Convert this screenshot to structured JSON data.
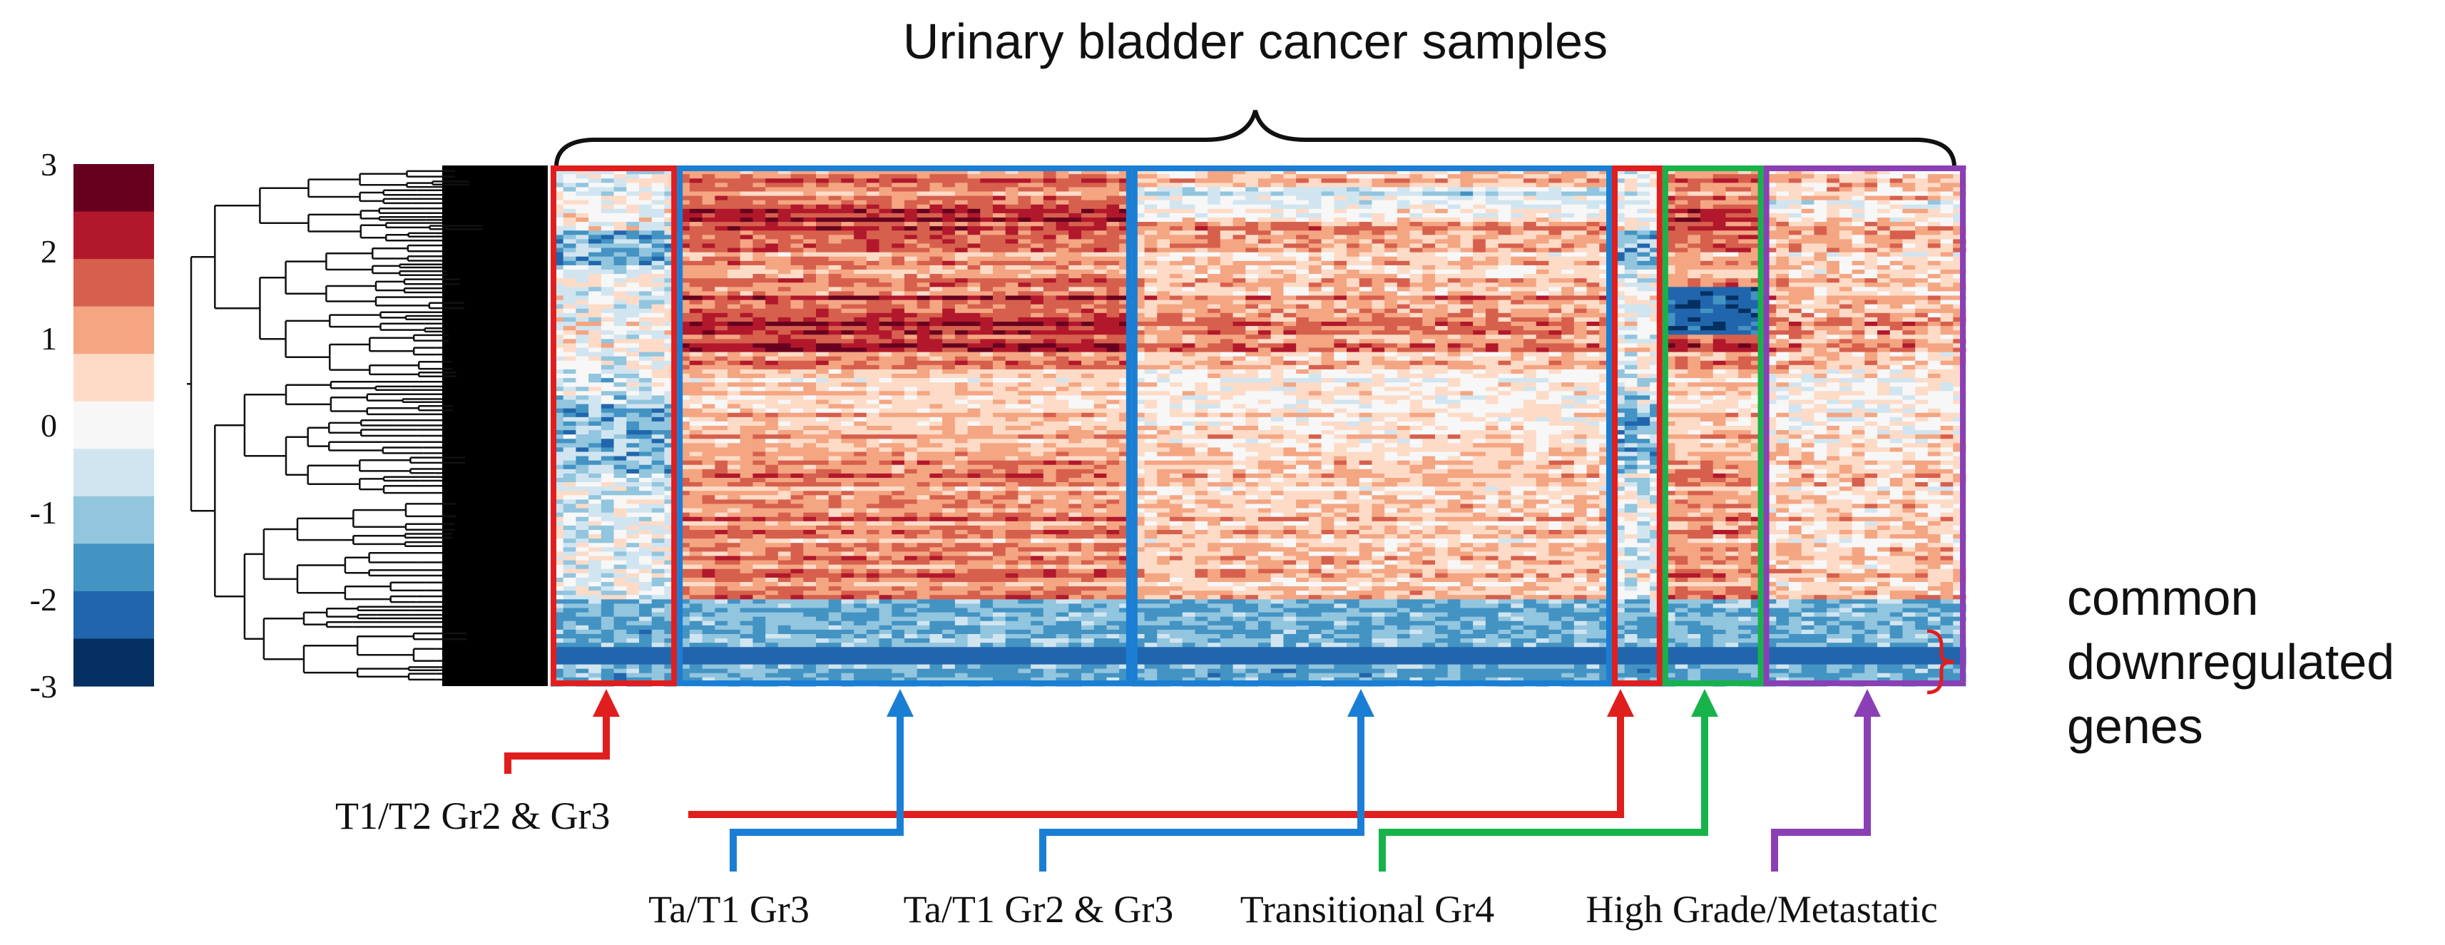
{
  "chart_data": {
    "type": "heatmap",
    "title": "Urinary bladder cancer samples",
    "colorbar": {
      "ticks": [
        "3",
        "2",
        "1",
        "0",
        "-1",
        "-2",
        "-3"
      ],
      "range": [
        -3,
        3
      ],
      "colors": [
        "#67001f",
        "#b2182b",
        "#d6604d",
        "#f4a582",
        "#fddbc7",
        "#f7f7f7",
        "#d1e5f0",
        "#92c5de",
        "#4393c3",
        "#2166ac",
        "#053061"
      ]
    },
    "sample_groups": [
      {
        "name": "T1/T2 Gr2 & Gr3",
        "box_color": "#e01e1e",
        "columns": 10,
        "pattern": "mixed"
      },
      {
        "name": "Ta/T1 Gr3",
        "box_color": "#1a7fd4",
        "columns": 36,
        "pattern": "high"
      },
      {
        "name": "Ta/T1 Gr2 & Gr3",
        "box_color": "#1a7fd4",
        "columns": 38,
        "pattern": "light"
      },
      {
        "name": "T1/T2 Gr2 & Gr3",
        "box_color": "#e01e1e",
        "columns": 4,
        "pattern": "mixed"
      },
      {
        "name": "Transitional Gr4",
        "box_color": "#17b34a",
        "columns": 8,
        "pattern": "transitional"
      },
      {
        "name": "High Grade/Metastatic",
        "box_color": "#8a3fb5",
        "columns": 16,
        "pattern": "metastatic"
      }
    ],
    "bracket_label": [
      "common",
      "downregulated",
      "genes"
    ],
    "row_count": 120
  },
  "labels": {
    "title": "Urinary bladder cancer samples",
    "t1t2": "T1/T2 Gr2 & Gr3",
    "tat1gr3": "Ta/T1 Gr3",
    "tat1gr23": "Ta/T1 Gr2 & Gr3",
    "transitional": "Transitional Gr4",
    "highgrade": "High Grade/Metastatic",
    "common_line1": "common",
    "common_line2": "downregulated",
    "common_line3": "genes"
  },
  "colors": {
    "red": "#e01e1e",
    "blue": "#1a7fd4",
    "green": "#17b34a",
    "purple": "#8a3fb5"
  }
}
